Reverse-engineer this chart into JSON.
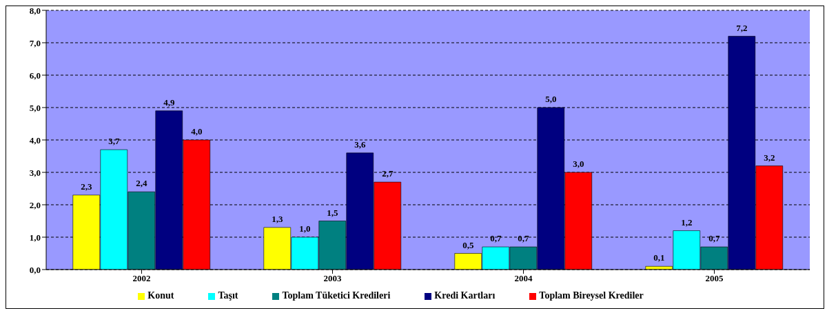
{
  "chart_data": {
    "type": "bar",
    "categories": [
      "2002",
      "2003",
      "2004",
      "2005"
    ],
    "series": [
      {
        "name": "Konut",
        "color": "#ffff00",
        "values": [
          2.3,
          1.3,
          0.5,
          0.1
        ],
        "value_labels": [
          "2,3",
          "1,3",
          "0,5",
          "0,1"
        ]
      },
      {
        "name": "Taşıt",
        "color": "#00ffff",
        "values": [
          3.7,
          1.0,
          0.7,
          1.2
        ],
        "value_labels": [
          "3,7",
          "1,0",
          "0,7",
          "1,2"
        ]
      },
      {
        "name": "Toplam Tüketici Kredileri",
        "color": "#008080",
        "values": [
          2.4,
          1.5,
          0.7,
          0.7
        ],
        "value_labels": [
          "2,4",
          "1,5",
          "0,7",
          "0,7"
        ]
      },
      {
        "name": "Kredi Kartları",
        "color": "#000080",
        "values": [
          4.9,
          3.6,
          5.0,
          7.2
        ],
        "value_labels": [
          "4,9",
          "3,6",
          "5,0",
          "7,2"
        ]
      },
      {
        "name": "Toplam Bireysel Krediler",
        "color": "#ff0000",
        "values": [
          4.0,
          2.7,
          3.0,
          3.2
        ],
        "value_labels": [
          "4,0",
          "2,7",
          "3,0",
          "3,2"
        ]
      }
    ],
    "ylim": [
      0,
      8
    ],
    "yticks": [
      {
        "value": 0,
        "label": "0,0"
      },
      {
        "value": 1,
        "label": "1,0"
      },
      {
        "value": 2,
        "label": "2,0"
      },
      {
        "value": 3,
        "label": "3,0"
      },
      {
        "value": 4,
        "label": "4,0"
      },
      {
        "value": 5,
        "label": "5,0"
      },
      {
        "value": 6,
        "label": "6,0"
      },
      {
        "value": 7,
        "label": "7,0"
      },
      {
        "value": 8,
        "label": "8,0"
      }
    ],
    "grid": "y",
    "legend": "bottom"
  }
}
